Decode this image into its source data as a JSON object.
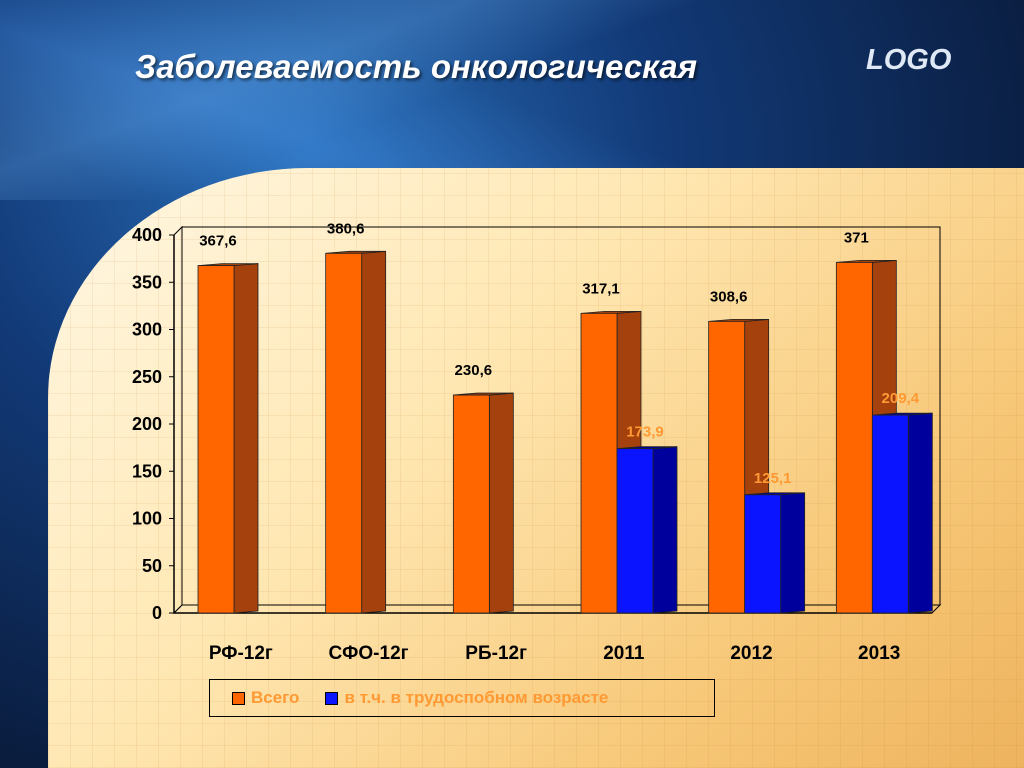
{
  "slide": {
    "title": "Заболеваемость онкологическая",
    "logo": "LOGO"
  },
  "colors": {
    "total": "#ff6600",
    "total_side": "#a5410d",
    "working": "#0a14ff",
    "working_side": "#00009c",
    "working_label": "#ff9933"
  },
  "chart_data": {
    "type": "bar",
    "categories": [
      "РФ-12г",
      "СФО-12г",
      "РБ-12г",
      "2011",
      "2012",
      "2013"
    ],
    "series": [
      {
        "name": "Всего",
        "values": [
          367.6,
          380.6,
          230.6,
          317.1,
          308.6,
          371
        ],
        "labels": [
          "367,6",
          "380,6",
          "230,6",
          "317,1",
          "308,6",
          "371"
        ]
      },
      {
        "name": "в т.ч. в трудоспобном возрасте",
        "values": [
          null,
          null,
          null,
          173.9,
          125.1,
          209.4
        ],
        "labels": [
          null,
          null,
          null,
          "173,9",
          "125,1",
          "209,4"
        ]
      }
    ],
    "ylim": [
      0,
      400
    ],
    "yticks": [
      0,
      50,
      100,
      150,
      200,
      250,
      300,
      350,
      400
    ],
    "grid": false,
    "legend_position": "bottom"
  }
}
